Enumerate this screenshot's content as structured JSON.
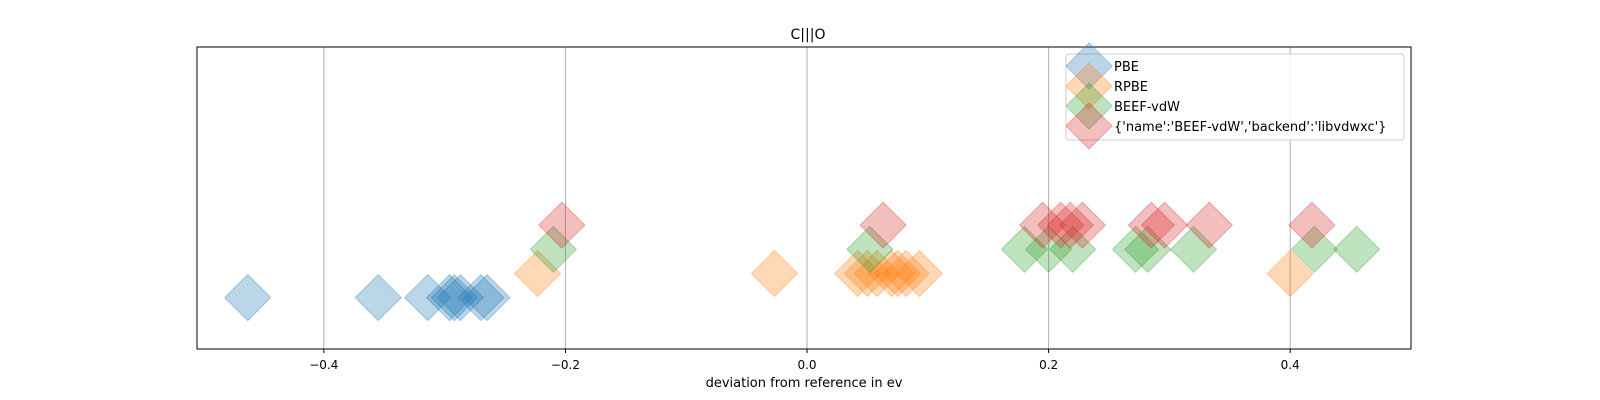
{
  "chart_data": {
    "type": "scatter",
    "title": "C|||O",
    "xlabel": "deviation from reference in ev",
    "ylabel": "",
    "xlim": [
      -0.505,
      0.5
    ],
    "ylim": [
      0,
      1
    ],
    "xticks": [
      -0.4,
      -0.2,
      0.0,
      0.2,
      0.4
    ],
    "xtick_labels": [
      "−0.4",
      "−0.2",
      "0.0",
      "0.2",
      "0.4"
    ],
    "grid": "vertical",
    "legend_position": "top-right",
    "marker": "diamond",
    "series": [
      {
        "name": "PBE",
        "color": "#1f77b4",
        "y": 0.17,
        "x": [
          -0.463,
          -0.355,
          -0.314,
          -0.296,
          -0.292,
          -0.287,
          -0.27,
          -0.265
        ]
      },
      {
        "name": "RPBE",
        "color": "#ff7f0e",
        "y": 0.25,
        "x": [
          -0.223,
          -0.027,
          0.042,
          0.05,
          0.058,
          0.07,
          0.075,
          0.082,
          0.093,
          0.4
        ]
      },
      {
        "name": "BEEF-vdW",
        "color": "#2ca02c",
        "y": 0.33,
        "x": [
          -0.21,
          0.052,
          0.18,
          0.2,
          0.22,
          0.272,
          0.282,
          0.32,
          0.42,
          0.455
        ]
      },
      {
        "name": "{'name':'BEEF-vdW','backend':'libvdwxc'}",
        "color": "#d62728",
        "y": 0.41,
        "x": [
          -0.203,
          0.063,
          0.195,
          0.21,
          0.218,
          0.228,
          0.285,
          0.296,
          0.333,
          0.418
        ]
      }
    ]
  }
}
